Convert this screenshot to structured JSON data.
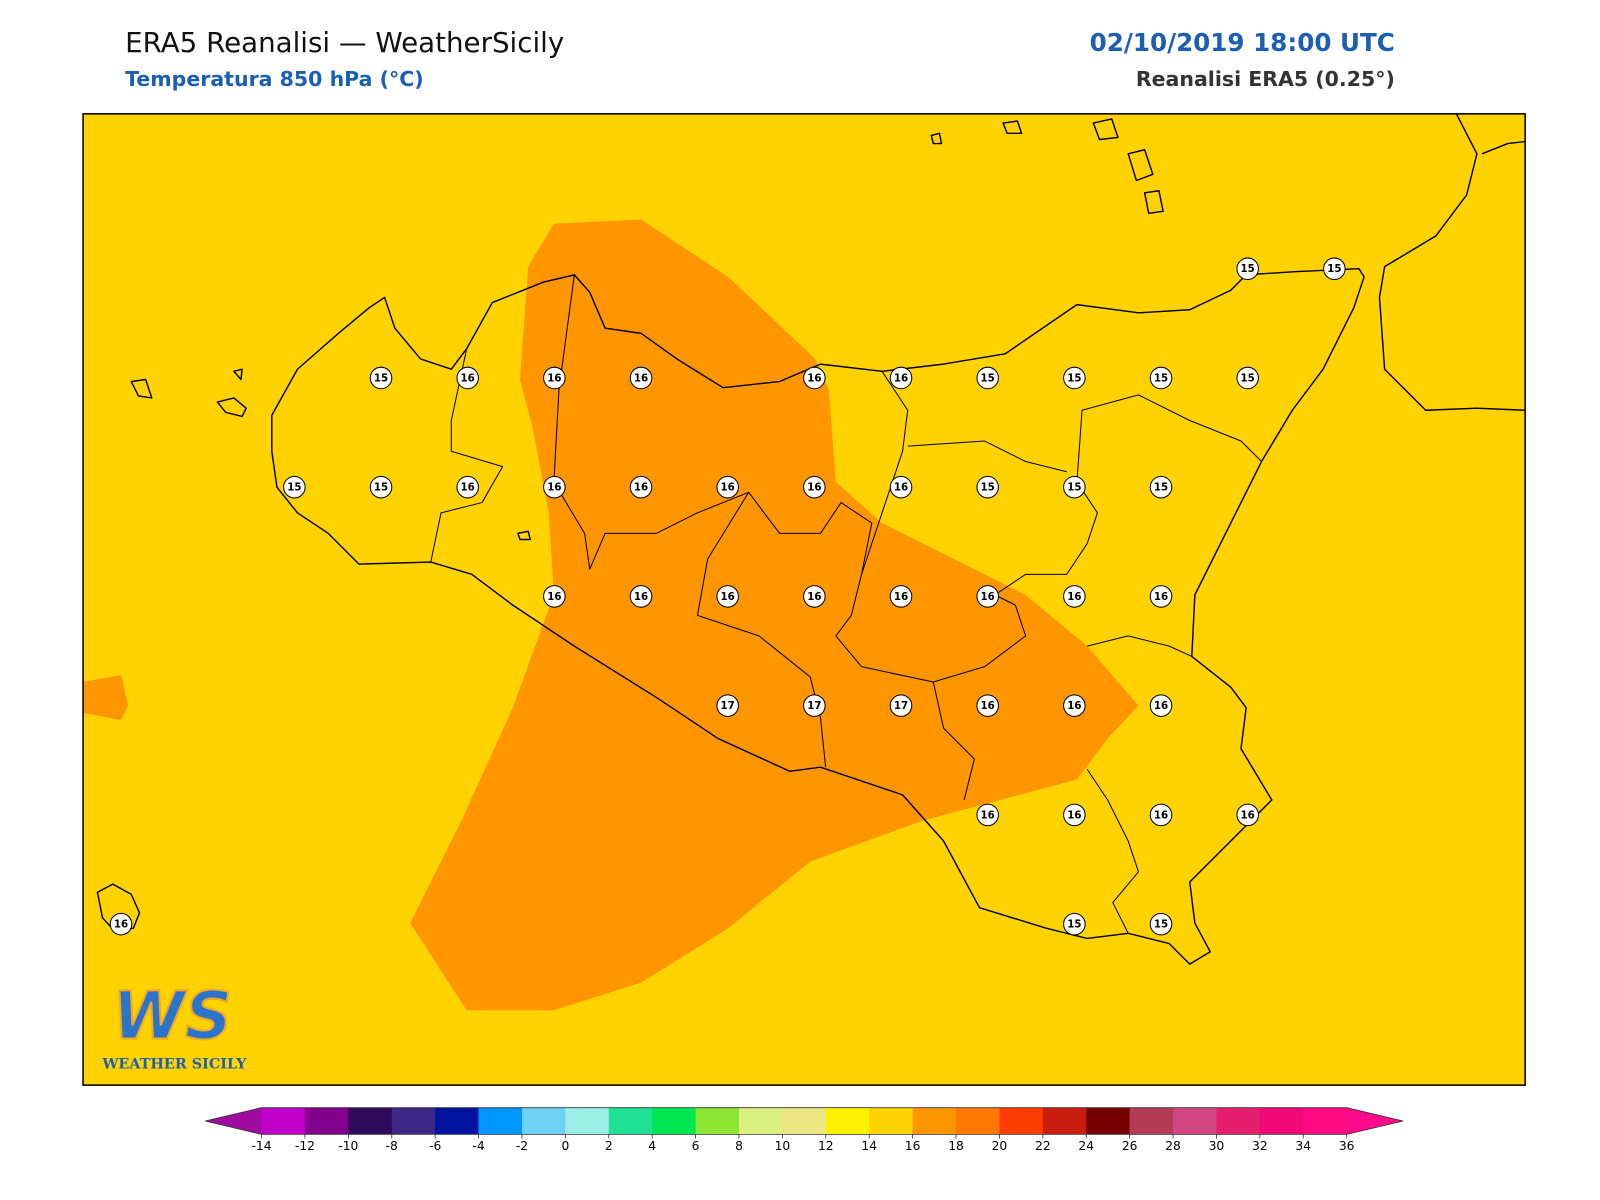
{
  "header": {
    "title": "ERA5 Reanalisi — WeatherSicily",
    "subtitle": "Temperatura 850 hPa (°C)",
    "datetime": "02/10/2019 18:00 UTC",
    "source": "Reanalisi ERA5 (0.25°)"
  },
  "stations": {
    "rows": [
      [
        15,
        15
      ],
      [
        15,
        16,
        16,
        16,
        16,
        16,
        15,
        15,
        15,
        15
      ],
      [
        15,
        15,
        16,
        16,
        16,
        16,
        16,
        16,
        15,
        15,
        15
      ],
      [
        16,
        16,
        16,
        16,
        16,
        16,
        16,
        16
      ],
      [
        17,
        17,
        17,
        16,
        16,
        16
      ],
      [
        16,
        16,
        16,
        16
      ],
      [
        16,
        15,
        15
      ]
    ]
  },
  "legend": {
    "ticks": [
      -14,
      -12,
      -10,
      -8,
      -6,
      -4,
      -2,
      0,
      2,
      4,
      6,
      8,
      10,
      12,
      14,
      16,
      18,
      20,
      22,
      24,
      26,
      28,
      30,
      32,
      34,
      36
    ],
    "colors": [
      "#a00aa0",
      "#c000c8",
      "#82008c",
      "#2d0a5a",
      "#3c2887",
      "#0014a0",
      "#0096ff",
      "#6ed2f5",
      "#9af0e6",
      "#1ee196",
      "#00e650",
      "#8ce632",
      "#dcf082",
      "#ebe682",
      "#fff000",
      "#ffd200",
      "#ff9600",
      "#ff7800",
      "#ff3c00",
      "#c81e0f",
      "#780000",
      "#b43c55",
      "#d24682",
      "#e61e6e",
      "#f00a78",
      "#ff0a82",
      "#ff0a8c"
    ]
  },
  "logo": {
    "mark": "WS",
    "name": "WEATHER SICILY"
  }
}
